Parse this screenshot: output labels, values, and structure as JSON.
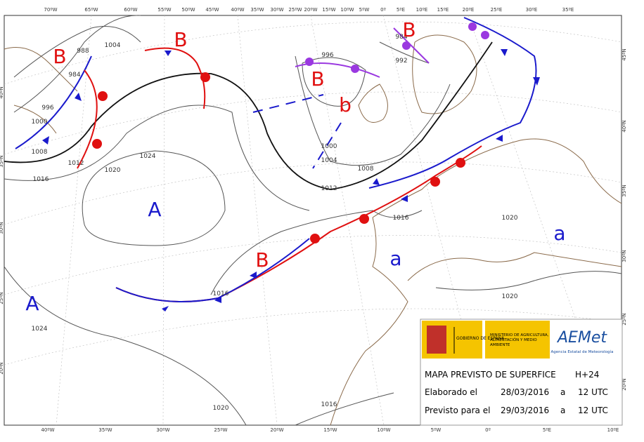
{
  "map": {
    "top_longitudes": [
      "70ºW",
      "65ºW",
      "60ºW",
      "55ºW",
      "50ºW",
      "45ºW",
      "40ºW",
      "35ºW",
      "30ºW",
      "25ºW",
      "20ºW",
      "15ºW",
      "10ºW",
      "5ºW",
      "0º",
      "5ºE",
      "10ºE",
      "15ºE",
      "20ºE",
      "25ºE",
      "30ºE",
      "35ºE"
    ],
    "bottom_longitudes": [
      "40ºW",
      "35ºW",
      "30ºW",
      "25ºW",
      "20ºW",
      "15ºW",
      "10ºW",
      "5ºW",
      "0º",
      "5ºE",
      "10ºE"
    ],
    "left_latitudes": [
      "40ºN",
      "35ºN",
      "30ºN",
      "25ºN",
      "20ºN"
    ],
    "right_latitudes": [
      "45ºN",
      "40ºN",
      "35ºN",
      "30ºN",
      "25ºN",
      "20ºN"
    ],
    "isobar_labels": [
      "988",
      "1004",
      "984",
      "996",
      "1000",
      "1008",
      "1012",
      "1016",
      "1020",
      "1024",
      "996",
      "1000",
      "1004",
      "1008",
      "1012",
      "984",
      "992",
      "1016",
      "1020",
      "1016",
      "1020",
      "1024",
      "1020",
      "1016"
    ],
    "centers": [
      "B",
      "B",
      "B",
      "b",
      "B",
      "A",
      "A",
      "B",
      "a",
      "a"
    ]
  },
  "footer": {
    "gov": "GOBIERNO DE ESPAÑA",
    "ministry": "MINISTERIO DE AGRICULTURA, ALIMENTACIÓN Y MEDIO AMBIENTE",
    "agency": "AEMet",
    "agency_full": "Agencia Estatal de Meteorología",
    "title": "MAPA PREVISTO DE SUPERFICE",
    "step": "H+24",
    "rows": [
      [
        "Elaborado el",
        "28/03/2016",
        "a",
        "12 UTC"
      ],
      [
        "Previsto para el",
        "29/03/2016",
        "a",
        "12 UTC"
      ]
    ]
  }
}
